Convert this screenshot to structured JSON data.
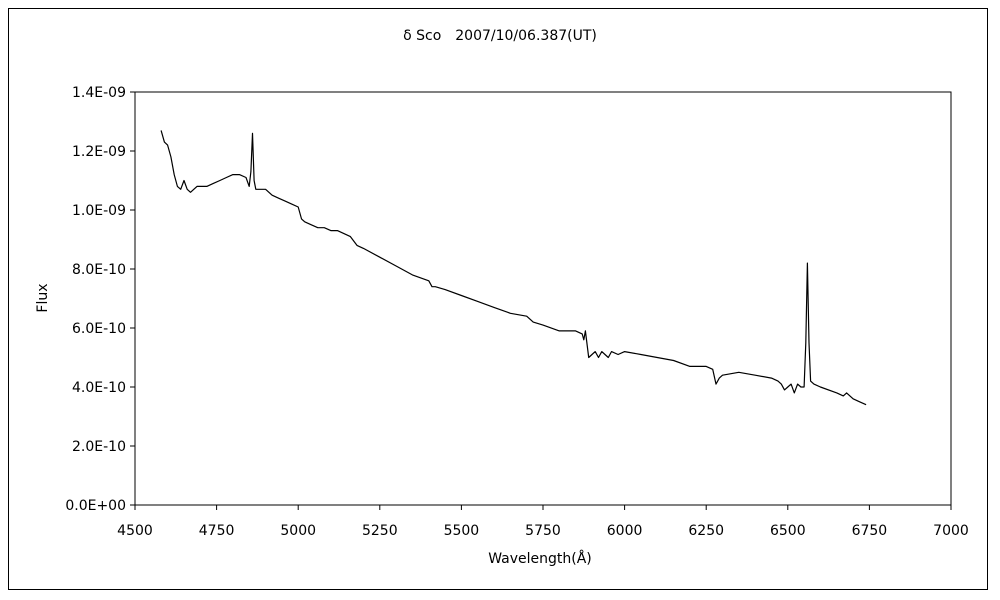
{
  "chart_data": {
    "type": "line",
    "title": "δ Sco　2007/10/06.387(UT)",
    "xlabel": "Wavelength(Å)",
    "ylabel": "Flux",
    "xlim": [
      4500,
      7000
    ],
    "ylim": [
      0,
      1.4e-09
    ],
    "x_ticks": [
      4500,
      4750,
      5000,
      5250,
      5500,
      5750,
      6000,
      6250,
      6500,
      6750,
      7000
    ],
    "x_tick_labels": [
      "4500",
      "4750",
      "5000",
      "5250",
      "5500",
      "5750",
      "6000",
      "6250",
      "6500",
      "6750",
      "7000"
    ],
    "y_ticks": [
      0,
      2e-10,
      4e-10,
      6e-10,
      8e-10,
      1e-09,
      1.2e-09,
      1.4e-09
    ],
    "y_tick_labels": [
      "0.0E+00",
      "2.0E-10",
      "4.0E-10",
      "6.0E-10",
      "8.0E-10",
      "1.0E-09",
      "1.2E-09",
      "1.4E-09"
    ],
    "grid": false,
    "legend": "none",
    "series": [
      {
        "color": "#000000",
        "x": [
          4580,
          4590,
          4600,
          4610,
          4620,
          4630,
          4640,
          4650,
          4660,
          4670,
          4680,
          4690,
          4700,
          4720,
          4740,
          4760,
          4780,
          4800,
          4820,
          4840,
          4850,
          4855,
          4860,
          4865,
          4870,
          4880,
          4900,
          4920,
          4940,
          4960,
          4980,
          5000,
          5010,
          5020,
          5040,
          5060,
          5080,
          5100,
          5120,
          5140,
          5160,
          5180,
          5200,
          5250,
          5300,
          5350,
          5400,
          5410,
          5420,
          5450,
          5500,
          5550,
          5600,
          5650,
          5700,
          5720,
          5750,
          5800,
          5850,
          5870,
          5875,
          5880,
          5890,
          5900,
          5910,
          5920,
          5930,
          5940,
          5950,
          5960,
          5980,
          6000,
          6050,
          6100,
          6150,
          6200,
          6250,
          6270,
          6280,
          6290,
          6300,
          6350,
          6400,
          6450,
          6470,
          6480,
          6490,
          6500,
          6510,
          6520,
          6530,
          6540,
          6550,
          6555,
          6560,
          6565,
          6570,
          6580,
          6600,
          6650,
          6670,
          6680,
          6700,
          6720,
          6740
        ],
        "y": [
          1.27e-09,
          1.23e-09,
          1.22e-09,
          1.18e-09,
          1.12e-09,
          1.08e-09,
          1.07e-09,
          1.1e-09,
          1.07e-09,
          1.06e-09,
          1.07e-09,
          1.08e-09,
          1.08e-09,
          1.08e-09,
          1.09e-09,
          1.1e-09,
          1.11e-09,
          1.12e-09,
          1.12e-09,
          1.11e-09,
          1.08e-09,
          1.13e-09,
          1.26e-09,
          1.1e-09,
          1.07e-09,
          1.07e-09,
          1.07e-09,
          1.05e-09,
          1.04e-09,
          1.03e-09,
          1.02e-09,
          1.01e-09,
          9.7e-10,
          9.6e-10,
          9.5e-10,
          9.4e-10,
          9.4e-10,
          9.3e-10,
          9.3e-10,
          9.2e-10,
          9.1e-10,
          8.8e-10,
          8.7e-10,
          8.4e-10,
          8.1e-10,
          7.8e-10,
          7.6e-10,
          7.4e-10,
          7.4e-10,
          7.3e-10,
          7.1e-10,
          6.9e-10,
          6.7e-10,
          6.5e-10,
          6.4e-10,
          6.2e-10,
          6.1e-10,
          5.9e-10,
          5.9e-10,
          5.8e-10,
          5.6e-10,
          5.9e-10,
          5e-10,
          5.1e-10,
          5.2e-10,
          5e-10,
          5.2e-10,
          5.1e-10,
          5e-10,
          5.2e-10,
          5.1e-10,
          5.2e-10,
          5.1e-10,
          5e-10,
          4.9e-10,
          4.7e-10,
          4.7e-10,
          4.6e-10,
          4.1e-10,
          4.3e-10,
          4.4e-10,
          4.5e-10,
          4.4e-10,
          4.3e-10,
          4.2e-10,
          4.1e-10,
          3.9e-10,
          4e-10,
          4.1e-10,
          3.8e-10,
          4.1e-10,
          4e-10,
          4e-10,
          5.5e-10,
          8.2e-10,
          5.5e-10,
          4.2e-10,
          4.1e-10,
          4e-10,
          3.8e-10,
          3.7e-10,
          3.8e-10,
          3.6e-10,
          3.5e-10,
          3.4e-10
        ]
      }
    ]
  }
}
